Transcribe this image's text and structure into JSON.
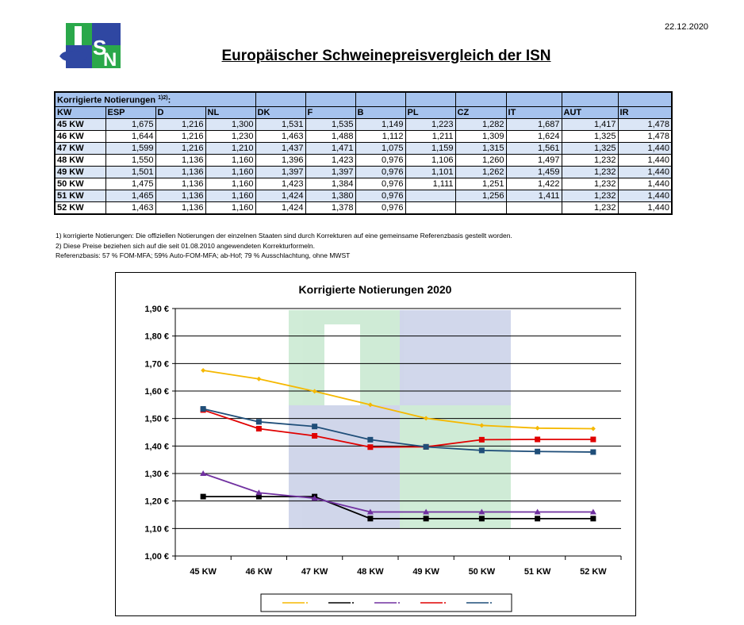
{
  "date": "22.12.2020",
  "title": "Europäischer Schweinepreisvergleich der ISN",
  "logo": {
    "letters": [
      "I",
      "S",
      "N"
    ],
    "colors": {
      "green": "#2aa84a",
      "blue": "#2f47a2",
      "light": "#ffffff"
    }
  },
  "table": {
    "caption": "Korrigierte Notierungen",
    "caption_sup": "1)2)",
    "caption_suffix": ":",
    "columns": [
      "KW",
      "ESP",
      "D",
      "NL",
      "DK",
      "F",
      "B",
      "PL",
      "CZ",
      "IT",
      "AUT",
      "IR"
    ],
    "rows": [
      [
        "45 KW",
        "1,675",
        "1,216",
        "1,300",
        "1,531",
        "1,535",
        "1,149",
        "1,223",
        "1,282",
        "1,687",
        "1,417",
        "1,478"
      ],
      [
        "46 KW",
        "1,644",
        "1,216",
        "1,230",
        "1,463",
        "1,488",
        "1,112",
        "1,211",
        "1,309",
        "1,624",
        "1,325",
        "1,478"
      ],
      [
        "47 KW",
        "1,599",
        "1,216",
        "1,210",
        "1,437",
        "1,471",
        "1,075",
        "1,159",
        "1,315",
        "1,561",
        "1,325",
        "1,440"
      ],
      [
        "48 KW",
        "1,550",
        "1,136",
        "1,160",
        "1,396",
        "1,423",
        "0,976",
        "1,106",
        "1,260",
        "1,497",
        "1,232",
        "1,440"
      ],
      [
        "49 KW",
        "1,501",
        "1,136",
        "1,160",
        "1,397",
        "1,397",
        "0,976",
        "1,101",
        "1,262",
        "1,459",
        "1,232",
        "1,440"
      ],
      [
        "50 KW",
        "1,475",
        "1,136",
        "1,160",
        "1,423",
        "1,384",
        "0,976",
        "1,111",
        "1,251",
        "1,422",
        "1,232",
        "1,440"
      ],
      [
        "51 KW",
        "1,465",
        "1,136",
        "1,160",
        "1,424",
        "1,380",
        "0,976",
        "",
        "1,256",
        "1,411",
        "1,232",
        "1,440"
      ],
      [
        "52 KW",
        "1,463",
        "1,136",
        "1,160",
        "1,424",
        "1,378",
        "0,976",
        "",
        "",
        "",
        "1,232",
        "1,440"
      ]
    ]
  },
  "notes": [
    "1) korrigierte Notierungen: Die offiziellen Notierungen der einzelnen Staaten sind durch Korrekturen auf eine gemeinsame Referenzbasis gestellt worden.",
    "2) Diese Preise beziehen sich auf die seit 01.08.2010 angewendeten Korrekturformeln.",
    "Referenzbasis: 57 % FOM-MFA; 59% Auto-FOM-MFA; ab-Hof; 79 % Ausschlachtung, ohne MWST"
  ],
  "chart_data": {
    "type": "line",
    "title": "Korrigierte Notierungen 2020",
    "categories": [
      "45 KW",
      "46 KW",
      "47 KW",
      "48 KW",
      "49 KW",
      "50 KW",
      "51 KW",
      "52 KW"
    ],
    "ylim": [
      1.0,
      1.9
    ],
    "yticks": [
      "1,00 €",
      "1,10 €",
      "1,20 €",
      "1,30 €",
      "1,40 €",
      "1,50 €",
      "1,60 €",
      "1,70 €",
      "1,80 €",
      "1,90 €"
    ],
    "grid": true,
    "legend_position": "bottom",
    "series": [
      {
        "color": "#f5b800",
        "marker": "diamond",
        "values": [
          1.675,
          1.644,
          1.599,
          1.55,
          1.501,
          1.475,
          1.465,
          1.463
        ]
      },
      {
        "color": "#000000",
        "marker": "square",
        "values": [
          1.216,
          1.216,
          1.216,
          1.136,
          1.136,
          1.136,
          1.136,
          1.136
        ]
      },
      {
        "color": "#7030a0",
        "marker": "triangle",
        "values": [
          1.3,
          1.23,
          1.21,
          1.16,
          1.16,
          1.16,
          1.16,
          1.16
        ]
      },
      {
        "color": "#e00000",
        "marker": "square",
        "values": [
          1.531,
          1.463,
          1.437,
          1.396,
          1.397,
          1.423,
          1.424,
          1.424
        ]
      },
      {
        "color": "#1f4e79",
        "marker": "square",
        "values": [
          1.535,
          1.488,
          1.471,
          1.423,
          1.397,
          1.384,
          1.38,
          1.378
        ]
      }
    ]
  }
}
